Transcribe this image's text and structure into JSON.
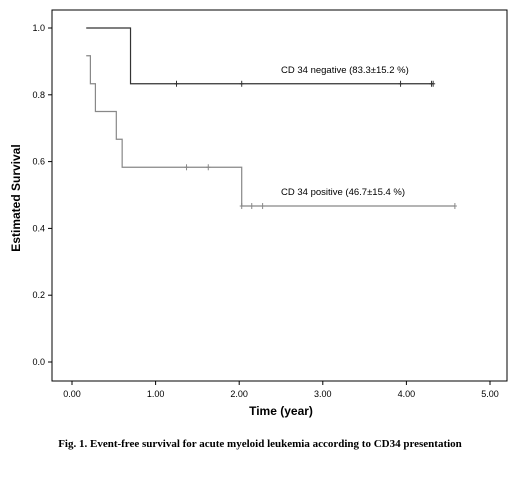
{
  "chart_data": {
    "type": "line",
    "xlabel": "Time (year)",
    "ylabel": "Estimated Survival",
    "xlim": [
      0,
      5
    ],
    "ylim": [
      0,
      1
    ],
    "x_ticks": [
      "0.00",
      "1.00",
      "2.00",
      "3.00",
      "4.00",
      "5.00"
    ],
    "y_ticks": [
      "0.0",
      "0.2",
      "0.4",
      "0.6",
      "0.8",
      "1.0"
    ],
    "grid": false,
    "line_style": "step",
    "series": [
      {
        "name": "CD 34 negative (83.3±15.2 %)",
        "color": "#333333",
        "steps": [
          [
            0.17,
            1.0
          ],
          [
            0.7,
            0.833
          ],
          [
            4.32,
            0.833
          ]
        ],
        "censored": [
          [
            1.25,
            0.833
          ],
          [
            2.03,
            0.833
          ],
          [
            3.93,
            0.833
          ],
          [
            4.3,
            0.833
          ],
          [
            4.32,
            0.833
          ]
        ],
        "label_at": [
          2.5,
          0.865
        ]
      },
      {
        "name": "CD 34 positive (46.7±15.4 %)",
        "color": "#888888",
        "steps": [
          [
            0.17,
            0.917
          ],
          [
            0.22,
            0.833
          ],
          [
            0.28,
            0.75
          ],
          [
            0.53,
            0.667
          ],
          [
            0.6,
            0.583
          ],
          [
            2.03,
            0.467
          ],
          [
            4.58,
            0.467
          ]
        ],
        "censored": [
          [
            1.37,
            0.583
          ],
          [
            1.63,
            0.583
          ],
          [
            2.03,
            0.467
          ],
          [
            2.15,
            0.467
          ],
          [
            2.28,
            0.467
          ],
          [
            4.58,
            0.467
          ]
        ],
        "label_at": [
          2.5,
          0.5
        ]
      }
    ]
  },
  "caption": "Fig. 1. Event-free survival for acute myeloid leukemia according to CD34 presentation"
}
